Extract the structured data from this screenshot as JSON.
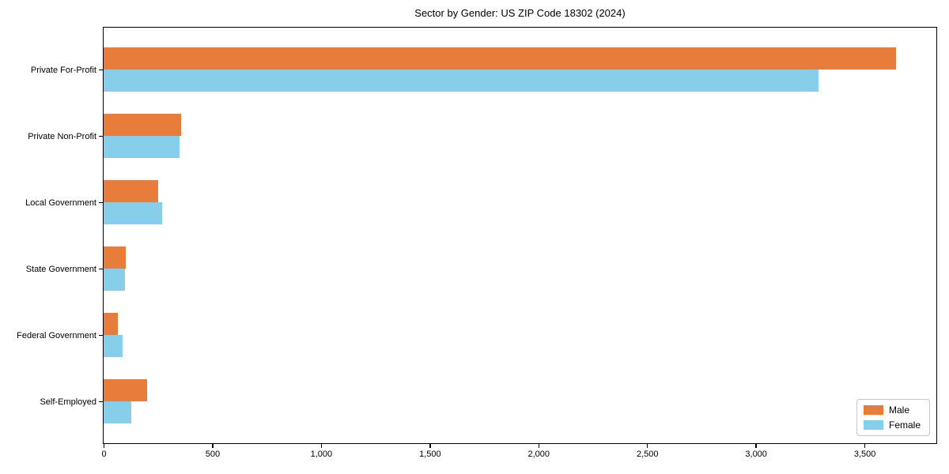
{
  "chart_data": {
    "type": "bar",
    "orientation": "horizontal",
    "title": "Sector by Gender: US ZIP Code 18302 (2024)",
    "categories": [
      "Private For-Profit",
      "Private Non-Profit",
      "Local Government",
      "State Government",
      "Federal Government",
      "Self-Employed"
    ],
    "series": [
      {
        "name": "Male",
        "color": "#e87d3b",
        "values": [
          3645,
          355,
          250,
          102,
          65,
          200
        ]
      },
      {
        "name": "Female",
        "color": "#87ceeb",
        "values": [
          3290,
          348,
          270,
          97,
          88,
          127
        ]
      }
    ],
    "xlabel": "",
    "ylabel": "",
    "xlim": [
      0,
      3827
    ],
    "xticks": [
      0,
      500,
      1000,
      1500,
      2000,
      2500,
      3000,
      3500
    ],
    "xtick_labels": [
      "0",
      "500",
      "1,000",
      "1,500",
      "2,000",
      "2,500",
      "3,000",
      "3,500"
    ],
    "grid": false,
    "legend_position": "lower right",
    "background_color": "#ffffff",
    "spine_color": "#000000"
  }
}
